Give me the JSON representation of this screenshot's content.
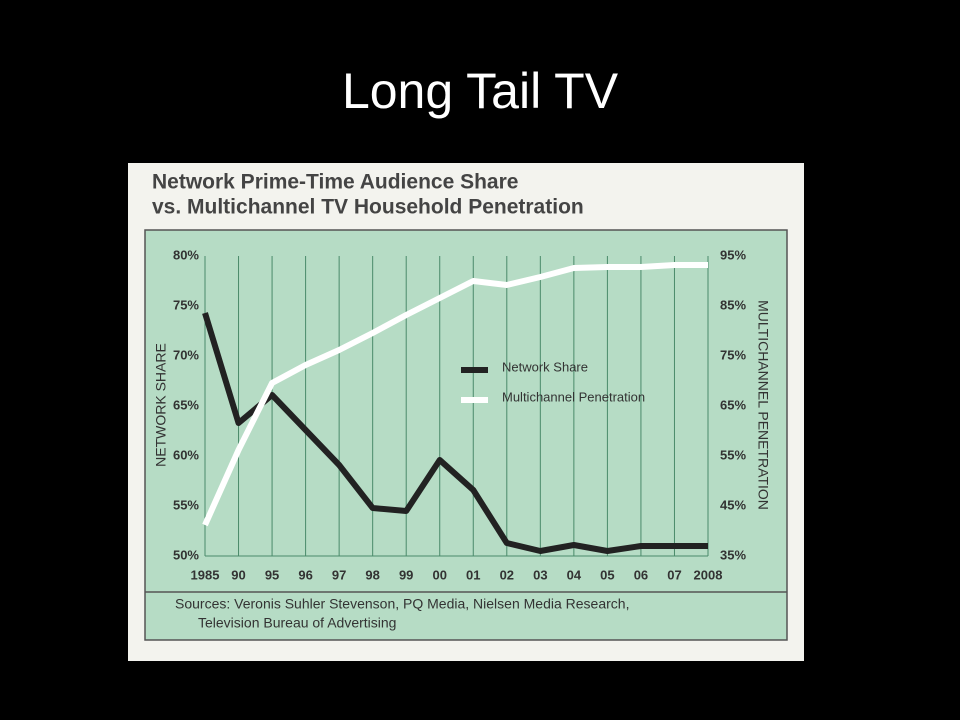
{
  "slide_title": "Long Tail TV",
  "chart_data": {
    "type": "line",
    "title_lines": [
      "Network Prime-Time Audience Share",
      "vs. Multichannel TV Household Penetration"
    ],
    "y_label": "NETWORK SHARE",
    "y2_label": "MULTICHANNEL PENETRATION",
    "sources": [
      "Sources: Veronis Suhler Stevenson, PQ Media, Nielsen Media Research,",
      "Television Bureau of Advertising"
    ],
    "categories": [
      "1985",
      "90",
      "95",
      "96",
      "97",
      "98",
      "99",
      "00",
      "01",
      "02",
      "03",
      "04",
      "05",
      "06",
      "07",
      "2008"
    ],
    "series": [
      {
        "name": "Network Share",
        "color": "#222222",
        "values": [
          74.3,
          63.3,
          66.1,
          62.6,
          59.1,
          54.8,
          54.5,
          59.6,
          56.6,
          51.3,
          50.5,
          51.1,
          50.5,
          51,
          51,
          51
        ]
      },
      {
        "name": "Multichannel Penetration",
        "color": "#ffffff",
        "axis": "y2",
        "values": [
          41.2,
          56.2,
          69.6,
          73.2,
          76.2,
          79.6,
          83.2,
          86.6,
          90,
          89.2,
          90.8,
          92.6,
          92.8,
          92.8,
          93.2,
          93.2
        ]
      }
    ],
    "ylim": [
      50,
      80
    ],
    "yticks": [
      {
        "value": 50,
        "label": "50%"
      },
      {
        "value": 55,
        "label": "55%"
      },
      {
        "value": 60,
        "label": "60%"
      },
      {
        "value": 65,
        "label": "65%"
      },
      {
        "value": 70,
        "label": "70%"
      },
      {
        "value": 75,
        "label": "75%"
      },
      {
        "value": 80,
        "label": "80%"
      }
    ],
    "y2lim": [
      35,
      95
    ],
    "y2ticks": [
      {
        "value": 35,
        "label": "35%"
      },
      {
        "value": 45,
        "label": "45%"
      },
      {
        "value": 55,
        "label": "55%"
      },
      {
        "value": 65,
        "label": "65%"
      },
      {
        "value": 75,
        "label": "75%"
      },
      {
        "value": 85,
        "label": "85%"
      },
      {
        "value": 95,
        "label": "95%"
      }
    ]
  }
}
